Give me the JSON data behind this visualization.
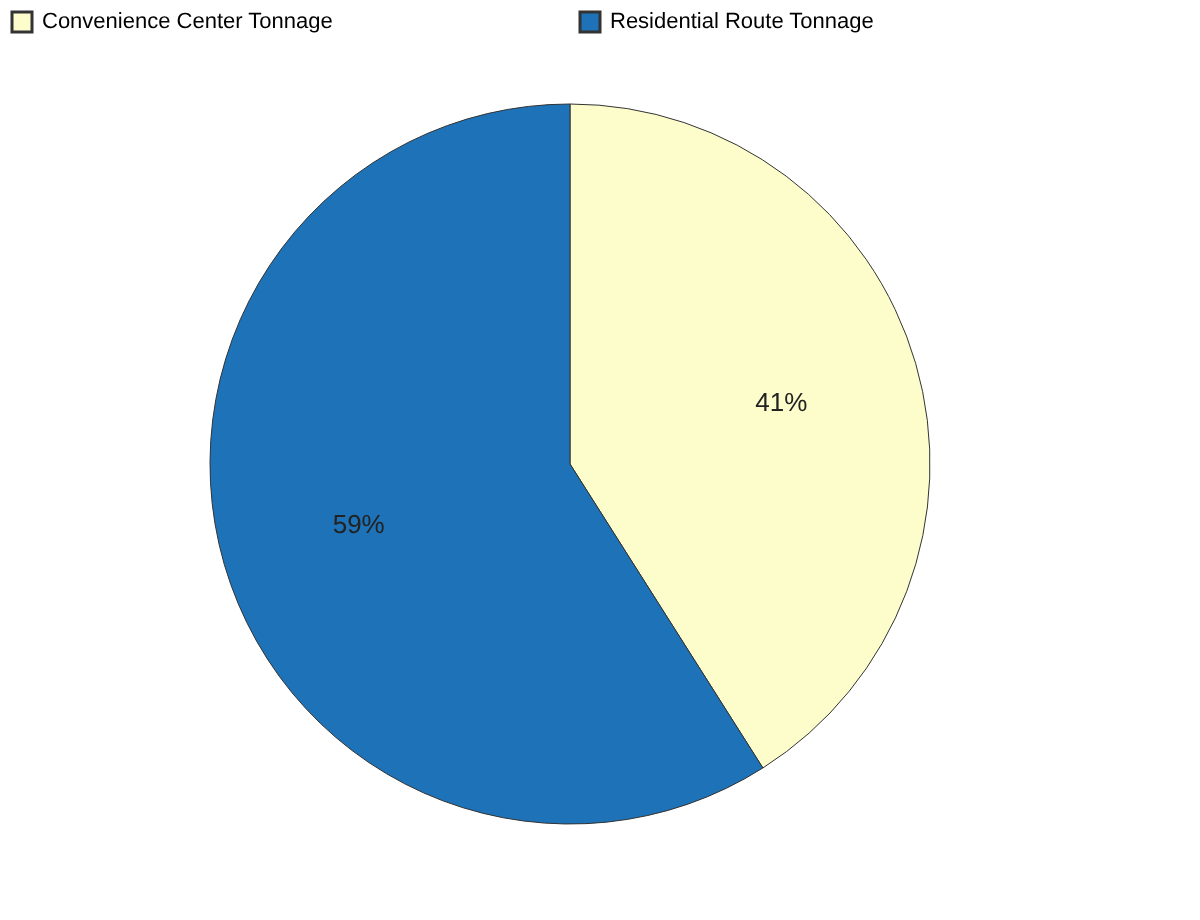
{
  "chart_data": {
    "type": "pie",
    "categories": [
      "Convenience Center Tonnage",
      "Residential Route Tonnage"
    ],
    "values": [
      41,
      59
    ],
    "colors": [
      "#fdfdcc",
      "#1e73b8"
    ],
    "value_labels": [
      "41%",
      "59%"
    ],
    "legend": "top"
  }
}
